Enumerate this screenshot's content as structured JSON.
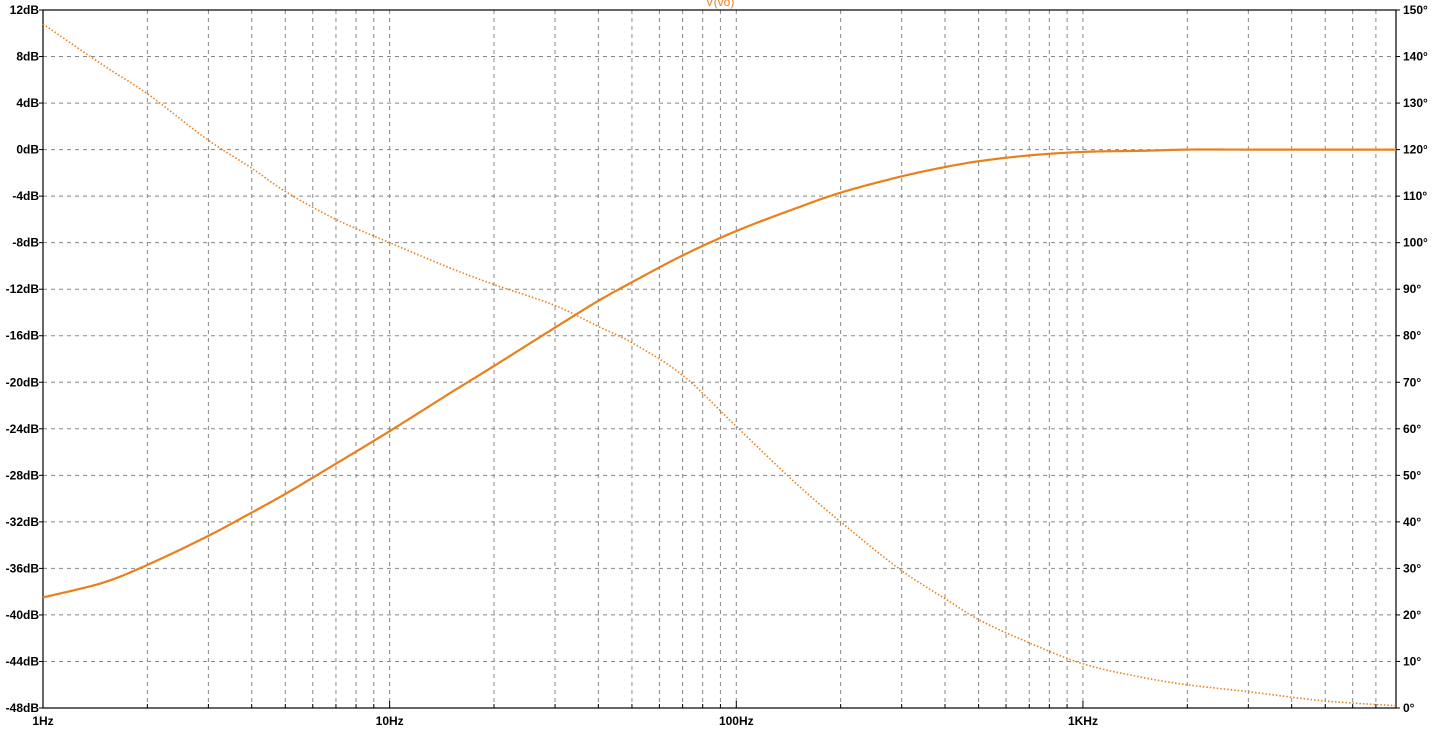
{
  "chart_data": {
    "type": "line",
    "title": "V(vo)",
    "x_scale": "log",
    "xlim": [
      1,
      8000
    ],
    "y_left_lim": [
      -48,
      12
    ],
    "y_right_lim": [
      0,
      150
    ],
    "grid": true,
    "line_color": "#e8801c",
    "x_ticks": [
      {
        "value": 1,
        "label": "1Hz"
      },
      {
        "value": 10,
        "label": "10Hz"
      },
      {
        "value": 100,
        "label": "100Hz"
      },
      {
        "value": 1000,
        "label": "1KHz"
      }
    ],
    "y_left_ticks": [
      {
        "value": 12,
        "label": "12dB"
      },
      {
        "value": 8,
        "label": "8dB"
      },
      {
        "value": 4,
        "label": "4dB"
      },
      {
        "value": 0,
        "label": "0dB"
      },
      {
        "value": -4,
        "label": "-4dB"
      },
      {
        "value": -8,
        "label": "-8dB"
      },
      {
        "value": -12,
        "label": "-12dB"
      },
      {
        "value": -16,
        "label": "-16dB"
      },
      {
        "value": -20,
        "label": "-20dB"
      },
      {
        "value": -24,
        "label": "-24dB"
      },
      {
        "value": -28,
        "label": "-28dB"
      },
      {
        "value": -32,
        "label": "-32dB"
      },
      {
        "value": -36,
        "label": "-36dB"
      },
      {
        "value": -40,
        "label": "-40dB"
      },
      {
        "value": -44,
        "label": "-44dB"
      },
      {
        "value": -48,
        "label": "-48dB"
      }
    ],
    "y_right_ticks": [
      {
        "value": 150,
        "label": "150°"
      },
      {
        "value": 140,
        "label": "140°"
      },
      {
        "value": 130,
        "label": "130°"
      },
      {
        "value": 120,
        "label": "120°"
      },
      {
        "value": 110,
        "label": "110°"
      },
      {
        "value": 100,
        "label": "100°"
      },
      {
        "value": 90,
        "label": "90°"
      },
      {
        "value": 80,
        "label": "80°"
      },
      {
        "value": 70,
        "label": "70°"
      },
      {
        "value": 60,
        "label": "60°"
      },
      {
        "value": 50,
        "label": "50°"
      },
      {
        "value": 40,
        "label": "40°"
      },
      {
        "value": 30,
        "label": "30°"
      },
      {
        "value": 20,
        "label": "20°"
      },
      {
        "value": 10,
        "label": "10°"
      },
      {
        "value": 0,
        "label": "0°"
      }
    ],
    "series": [
      {
        "quantity": "magnitude",
        "axis": "left",
        "style": "solid",
        "x": [
          1,
          1.5,
          2,
          3,
          4,
          5,
          7,
          10,
          15,
          20,
          30,
          40,
          50,
          70,
          100,
          150,
          200,
          300,
          400,
          500,
          700,
          1000,
          1500,
          2000,
          3000,
          5000,
          8000
        ],
        "y": [
          -38.5,
          -37.2,
          -35.7,
          -33.2,
          -31.2,
          -29.6,
          -27.0,
          -24.2,
          -20.9,
          -18.6,
          -15.3,
          -13.0,
          -11.4,
          -9.1,
          -7.0,
          -5.0,
          -3.7,
          -2.3,
          -1.5,
          -1.0,
          -0.5,
          -0.2,
          -0.1,
          0,
          0,
          0,
          0
        ]
      },
      {
        "quantity": "phase",
        "axis": "right",
        "style": "dotted",
        "x": [
          1,
          1.5,
          2,
          3,
          4,
          5,
          7,
          10,
          15,
          20,
          30,
          40,
          50,
          70,
          100,
          150,
          200,
          300,
          400,
          500,
          700,
          1000,
          1500,
          2000,
          3000,
          5000,
          8000
        ],
        "y": [
          147,
          138,
          132,
          122,
          116,
          111,
          105,
          100,
          94.5,
          91,
          86.5,
          82,
          78.5,
          71.5,
          60.5,
          48,
          40,
          29.5,
          23.5,
          19,
          14,
          9.5,
          6.5,
          5,
          3.5,
          1.5,
          0.5
        ]
      }
    ]
  }
}
